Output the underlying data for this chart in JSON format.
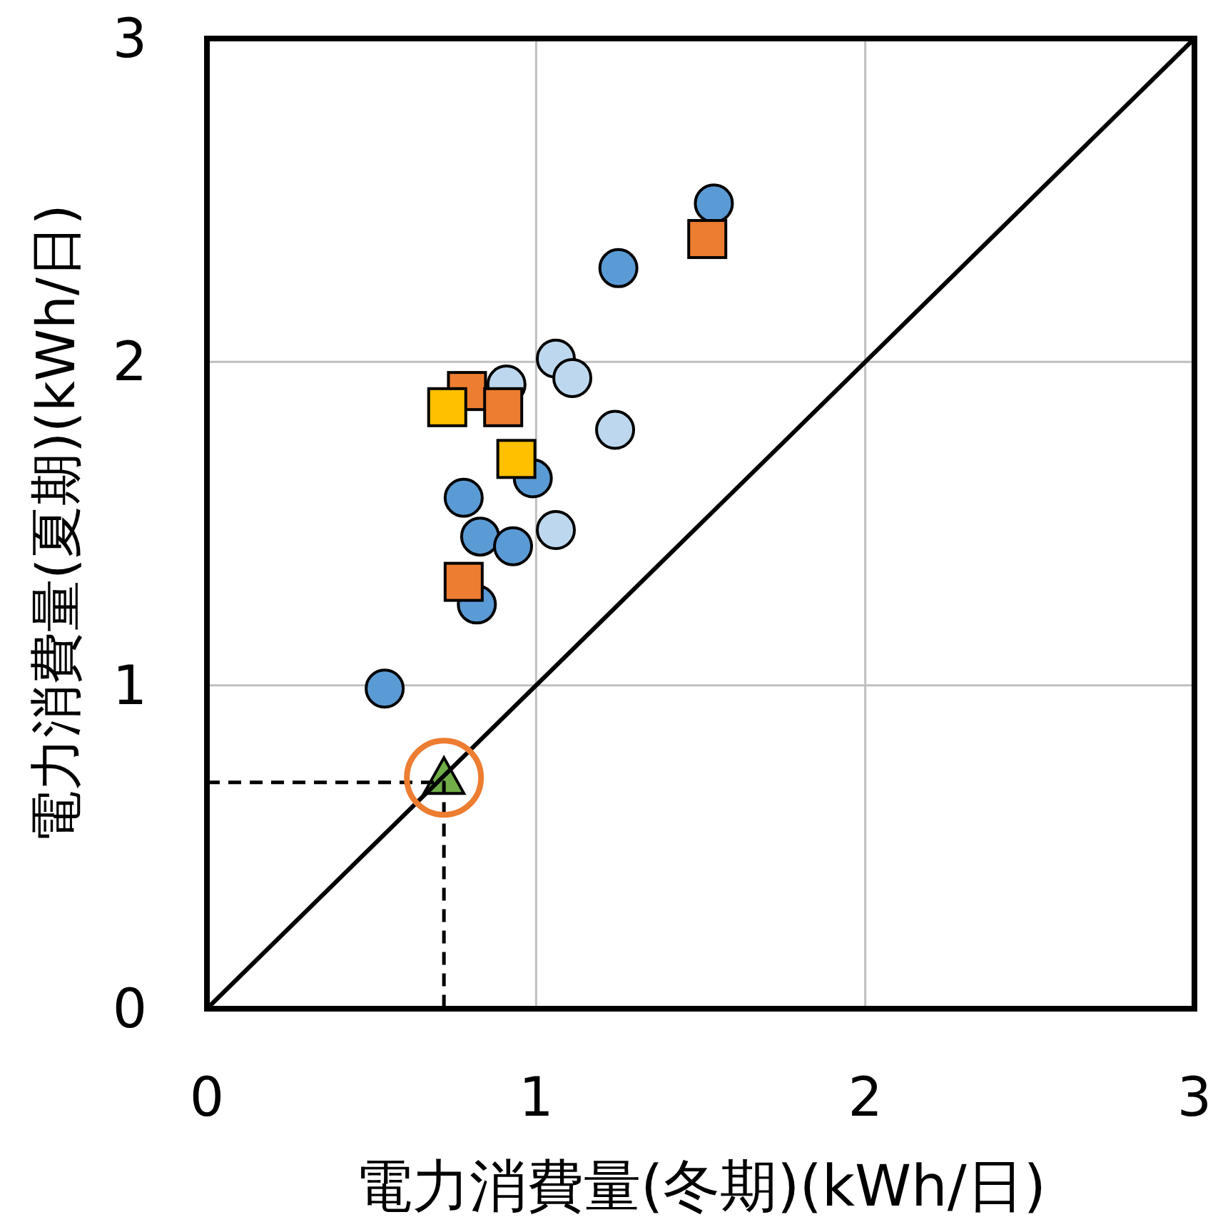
{
  "chart_data": {
    "type": "scatter",
    "xlabel": "電力消費量(冬期)(kWh/日)",
    "ylabel": "電力消費量(夏期)(kWh/日)",
    "xlim": [
      0,
      3
    ],
    "ylim": [
      0,
      3
    ],
    "xticks": [
      0,
      1,
      2,
      3
    ],
    "yticks": [
      0,
      1,
      2,
      3
    ],
    "grid": true,
    "series": [
      {
        "type": "line",
        "color": "#000000",
        "line_style": "solid",
        "marker": "none",
        "x": [
          0,
          3
        ],
        "values": [
          0,
          3
        ]
      },
      {
        "type": "line",
        "color": "#000000",
        "line_style": "dashed",
        "marker": "none",
        "x": [
          0,
          0.72,
          0.72
        ],
        "values": [
          0.7,
          0.7,
          0
        ]
      },
      {
        "type": "scatter",
        "color": "#5b9bd5",
        "marker": "circle",
        "x": [
          1.54,
          1.25,
          0.99,
          0.78,
          0.83,
          0.93,
          0.82,
          0.54
        ],
        "values": [
          2.49,
          2.29,
          1.64,
          1.58,
          1.46,
          1.43,
          1.25,
          0.99
        ]
      },
      {
        "type": "scatter",
        "color": "#bdd7ee",
        "marker": "circle",
        "x": [
          0.91,
          1.06,
          1.11,
          1.24,
          1.06
        ],
        "values": [
          1.93,
          2.01,
          1.95,
          1.79,
          1.48
        ]
      },
      {
        "type": "scatter",
        "color": "#ed7d31",
        "marker": "square",
        "x": [
          1.52,
          0.79,
          0.9,
          0.78
        ],
        "values": [
          2.38,
          1.91,
          1.86,
          1.32
        ]
      },
      {
        "type": "scatter",
        "color": "#ffc000",
        "marker": "square",
        "x": [
          0.73,
          0.94
        ],
        "values": [
          1.86,
          1.7
        ]
      },
      {
        "type": "scatter",
        "color": "#70ad47",
        "marker": "triangle",
        "x": [
          0.72
        ],
        "values": [
          0.71
        ]
      }
    ]
  }
}
